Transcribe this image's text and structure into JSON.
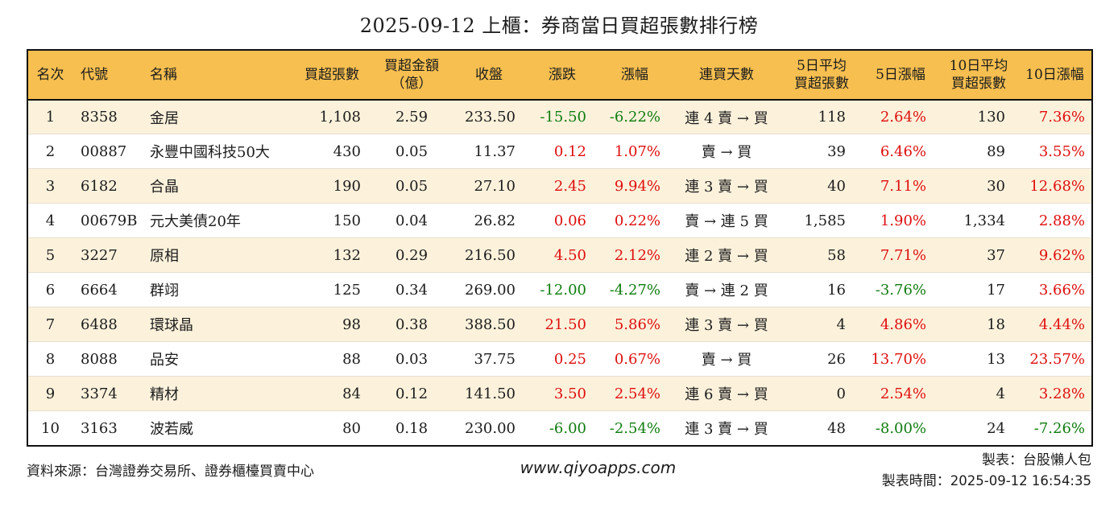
{
  "title": "2025-09-12 上櫃：券商當日買超張數排行榜",
  "colors": {
    "header_bg": "#f6bf50",
    "row_alt_bg": "#fcf2dc",
    "up_red": "#df0e0e",
    "down_green": "#107c10",
    "border": "#111111"
  },
  "table": {
    "columns": [
      {
        "key": "rank",
        "label": "名次",
        "colored": false
      },
      {
        "key": "code",
        "label": "代號",
        "colored": false
      },
      {
        "key": "name",
        "label": "名稱",
        "colored": false
      },
      {
        "key": "vol",
        "label": "買超張數",
        "colored": false
      },
      {
        "key": "amt",
        "label": "買超金額\n（億）",
        "colored": false
      },
      {
        "key": "close",
        "label": "收盤",
        "colored": false
      },
      {
        "key": "chg",
        "label": "漲跌",
        "colored": true
      },
      {
        "key": "chg_pct",
        "label": "漲幅",
        "colored": true
      },
      {
        "key": "streak",
        "label": "連買天數",
        "colored": false
      },
      {
        "key": "avg5",
        "label": "5日平均\n買超張數",
        "colored": false
      },
      {
        "key": "pct5",
        "label": "5日漲幅",
        "colored": true
      },
      {
        "key": "avg10",
        "label": "10日平均\n買超張數",
        "colored": false
      },
      {
        "key": "pct10",
        "label": "10日漲幅",
        "colored": true
      }
    ],
    "rows": [
      {
        "rank": "1",
        "code": "8358",
        "name": "金居",
        "vol": "1,108",
        "amt": "2.59",
        "close": "233.50",
        "chg": "-15.50",
        "chg_pct": "-6.22%",
        "streak": "連 4 賣 → 買",
        "avg5": "118",
        "pct5": "2.64%",
        "avg10": "130",
        "pct10": "7.36%"
      },
      {
        "rank": "2",
        "code": "00887",
        "name": "永豐中國科技50大",
        "vol": "430",
        "amt": "0.05",
        "close": "11.37",
        "chg": "0.12",
        "chg_pct": "1.07%",
        "streak": "賣 → 買",
        "avg5": "39",
        "pct5": "6.46%",
        "avg10": "89",
        "pct10": "3.55%"
      },
      {
        "rank": "3",
        "code": "6182",
        "name": "合晶",
        "vol": "190",
        "amt": "0.05",
        "close": "27.10",
        "chg": "2.45",
        "chg_pct": "9.94%",
        "streak": "連 3 賣 → 買",
        "avg5": "40",
        "pct5": "7.11%",
        "avg10": "30",
        "pct10": "12.68%"
      },
      {
        "rank": "4",
        "code": "00679B",
        "name": "元大美債20年",
        "vol": "150",
        "amt": "0.04",
        "close": "26.82",
        "chg": "0.06",
        "chg_pct": "0.22%",
        "streak": "賣 → 連 5 買",
        "avg5": "1,585",
        "pct5": "1.90%",
        "avg10": "1,334",
        "pct10": "2.88%"
      },
      {
        "rank": "5",
        "code": "3227",
        "name": "原相",
        "vol": "132",
        "amt": "0.29",
        "close": "216.50",
        "chg": "4.50",
        "chg_pct": "2.12%",
        "streak": "連 2 賣 → 買",
        "avg5": "58",
        "pct5": "7.71%",
        "avg10": "37",
        "pct10": "9.62%"
      },
      {
        "rank": "6",
        "code": "6664",
        "name": "群翊",
        "vol": "125",
        "amt": "0.34",
        "close": "269.00",
        "chg": "-12.00",
        "chg_pct": "-4.27%",
        "streak": "賣 → 連 2 買",
        "avg5": "16",
        "pct5": "-3.76%",
        "avg10": "17",
        "pct10": "3.66%"
      },
      {
        "rank": "7",
        "code": "6488",
        "name": "環球晶",
        "vol": "98",
        "amt": "0.38",
        "close": "388.50",
        "chg": "21.50",
        "chg_pct": "5.86%",
        "streak": "連 3 賣 → 買",
        "avg5": "4",
        "pct5": "4.86%",
        "avg10": "18",
        "pct10": "4.44%"
      },
      {
        "rank": "8",
        "code": "8088",
        "name": "品安",
        "vol": "88",
        "amt": "0.03",
        "close": "37.75",
        "chg": "0.25",
        "chg_pct": "0.67%",
        "streak": "賣 → 買",
        "avg5": "26",
        "pct5": "13.70%",
        "avg10": "13",
        "pct10": "23.57%"
      },
      {
        "rank": "9",
        "code": "3374",
        "name": "精材",
        "vol": "84",
        "amt": "0.12",
        "close": "141.50",
        "chg": "3.50",
        "chg_pct": "2.54%",
        "streak": "連 6 賣 → 買",
        "avg5": "0",
        "pct5": "2.54%",
        "avg10": "4",
        "pct10": "3.28%"
      },
      {
        "rank": "10",
        "code": "3163",
        "name": "波若威",
        "vol": "80",
        "amt": "0.18",
        "close": "230.00",
        "chg": "-6.00",
        "chg_pct": "-2.54%",
        "streak": "連 3 賣 → 買",
        "avg5": "48",
        "pct5": "-8.00%",
        "avg10": "24",
        "pct10": "-7.26%"
      }
    ]
  },
  "footer": {
    "source": "資料來源：台灣證券交易所、證券櫃檯買賣中心",
    "website": "www.qiyoapps.com",
    "maker": "製表：台股懶人包",
    "made_time_label": "製表時間：",
    "made_time_value": "2025-09-12 16:54:35"
  }
}
